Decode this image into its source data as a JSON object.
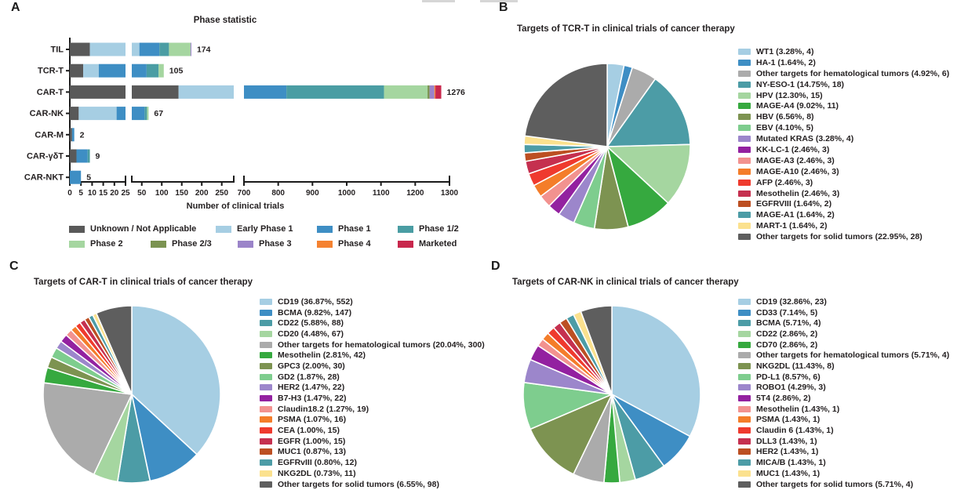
{
  "page": {
    "background": "#FFFFFF",
    "text_color": "#231F20"
  },
  "panels": {
    "a": {
      "label": "A"
    },
    "b": {
      "label": "B"
    },
    "c": {
      "label": "C"
    },
    "d": {
      "label": "D"
    }
  },
  "chart_data": [
    {
      "id": "phase-statistic",
      "type": "bar",
      "orientation": "horizontal",
      "grid": false,
      "title": "Phase statistic",
      "xlabel": "Number of clinical trials",
      "categories": [
        "TIL",
        "TCR-T",
        "CAR-T",
        "CAR-NK",
        "CAR-M",
        "CAR-γδT",
        "CAR-NKT"
      ],
      "totals": [
        174,
        105,
        1276,
        67,
        2,
        9,
        5
      ],
      "series": [
        {
          "name": "Unknown / Not Applicable",
          "color": "#595959",
          "values": [
            9,
            6,
            142,
            4,
            1,
            3,
            0
          ]
        },
        {
          "name": "Early Phase 1",
          "color": "#A6CEE3",
          "values": [
            35,
            7,
            378,
            17,
            0,
            0,
            0
          ]
        },
        {
          "name": "Phase 1",
          "color": "#3E8EC4",
          "values": [
            50,
            49,
            304,
            36,
            1,
            5,
            5
          ]
        },
        {
          "name": "Phase 1/2",
          "color": "#4A9DA3",
          "values": [
            24,
            30,
            285,
            6,
            0,
            1,
            0
          ]
        },
        {
          "name": "Phase 2",
          "color": "#A5D6A0",
          "values": [
            54,
            13,
            127,
            4,
            0,
            0,
            0
          ]
        },
        {
          "name": "Phase 2/3",
          "color": "#7B9351",
          "values": [
            0,
            0,
            6,
            0,
            0,
            0,
            0
          ]
        },
        {
          "name": "Phase 3",
          "color": "#9B84C9",
          "values": [
            2,
            0,
            14,
            0,
            0,
            0,
            0
          ]
        },
        {
          "name": "Phase 4",
          "color": "#F58231",
          "values": [
            0,
            0,
            3,
            0,
            0,
            0,
            0
          ]
        },
        {
          "name": "Marketed",
          "color": "#C8274C",
          "values": [
            0,
            0,
            17,
            0,
            0,
            0,
            0
          ]
        }
      ],
      "x_axis_segments": [
        {
          "range": [
            0,
            25
          ],
          "ticks": [
            0,
            5,
            10,
            15,
            20,
            25
          ]
        },
        {
          "range": [
            25,
            280
          ],
          "ticks": [
            50,
            100,
            150,
            200,
            250
          ]
        },
        {
          "range": [
            700,
            1300
          ],
          "ticks": [
            700,
            800,
            900,
            1000,
            1100,
            1200,
            1300
          ]
        }
      ]
    },
    {
      "id": "tcrt-targets",
      "type": "pie",
      "title": "Targets of TCR-T in clinical trials of cancer therapy",
      "slices": [
        {
          "label": "WT1",
          "pct": 3.28,
          "count": 4,
          "color": "#A6CEE3",
          "legend": "WT1 (3.28%, 4)"
        },
        {
          "label": "HA-1",
          "pct": 1.64,
          "count": 2,
          "color": "#3E8EC4",
          "legend": "HA-1 (1.64%, 2)"
        },
        {
          "label": "Other targets for hematological tumors",
          "pct": 4.92,
          "count": 6,
          "color": "#ABABAB",
          "legend": "Other targets for hematological tumors (4.92%, 6)"
        },
        {
          "label": "NY-ESO-1",
          "pct": 14.75,
          "count": 18,
          "color": "#4C9CA6",
          "legend": "NY-ESO-1 (14.75%, 18)"
        },
        {
          "label": "HPV",
          "pct": 12.3,
          "count": 15,
          "color": "#A5D6A0",
          "legend": "HPV (12.30%, 15)"
        },
        {
          "label": "MAGE-A4",
          "pct": 9.02,
          "count": 11,
          "color": "#36A93F",
          "legend": "MAGE-A4 (9.02%, 11)"
        },
        {
          "label": "HBV",
          "pct": 6.56,
          "count": 8,
          "color": "#7D9351",
          "legend": "HBV (6.56%, 8)"
        },
        {
          "label": "EBV",
          "pct": 4.1,
          "count": 5,
          "color": "#7ECD8E",
          "legend": "EBV (4.10%, 5)"
        },
        {
          "label": "Mutated KRAS",
          "pct": 3.28,
          "count": 4,
          "color": "#9C86CB",
          "legend": "Mutated KRAS (3.28%, 4)"
        },
        {
          "label": "KK-LC-1",
          "pct": 2.46,
          "count": 3,
          "color": "#9321A0",
          "legend": "KK-LC-1 (2.46%, 3)"
        },
        {
          "label": "MAGE-A3",
          "pct": 2.46,
          "count": 3,
          "color": "#F2928F",
          "legend": "MAGE-A3 (2.46%, 3)"
        },
        {
          "label": "MAGE-A10",
          "pct": 2.46,
          "count": 3,
          "color": "#F47D2A",
          "legend": "MAGE-A10 (2.46%, 3)"
        },
        {
          "label": "AFP",
          "pct": 2.46,
          "count": 3,
          "color": "#EF3A2E",
          "legend": "AFP (2.46%, 3)"
        },
        {
          "label": "Mesothelin",
          "pct": 2.46,
          "count": 3,
          "color": "#C5304F",
          "legend": "Mesothelin (2.46%, 3)"
        },
        {
          "label": "EGFRVIII",
          "pct": 1.64,
          "count": 2,
          "color": "#BC4F22",
          "legend": "EGFRVIII (1.64%, 2)"
        },
        {
          "label": "MAGE-A1",
          "pct": 1.64,
          "count": 2,
          "color": "#4C9CA6",
          "legend": "MAGE-A1 (1.64%, 2)"
        },
        {
          "label": "MART-1",
          "pct": 1.64,
          "count": 2,
          "color": "#FBE18E",
          "legend": "MART-1 (1.64%, 2)"
        },
        {
          "label": "Other targets for solid tumors",
          "pct": 22.95,
          "count": 28,
          "color": "#5E5E5E",
          "legend": "Other targets for solid tumors (22.95%, 28)"
        }
      ]
    },
    {
      "id": "cart-targets",
      "type": "pie",
      "title": "Targets of CAR-T in clinical trials of cancer therapy",
      "slices": [
        {
          "label": "CD19",
          "pct": 36.87,
          "count": 552,
          "color": "#A6CEE3",
          "legend": "CD19 (36.87%, 552)"
        },
        {
          "label": "BCMA",
          "pct": 9.82,
          "count": 147,
          "color": "#3E8EC4",
          "legend": "BCMA (9.82%, 147)"
        },
        {
          "label": "CD22",
          "pct": 5.88,
          "count": 88,
          "color": "#4C9CA6",
          "legend": "CD22 (5.88%, 88)"
        },
        {
          "label": "CD20",
          "pct": 4.48,
          "count": 67,
          "color": "#A5D6A0",
          "legend": "CD20 (4.48%, 67)"
        },
        {
          "label": "Other targets for hematological tumors",
          "pct": 20.04,
          "count": 300,
          "color": "#ABABAB",
          "legend": "Other targets for hematological tumors (20.04%, 300)"
        },
        {
          "label": "Mesothelin",
          "pct": 2.81,
          "count": 42,
          "color": "#36A93F",
          "legend": "Mesothelin (2.81%, 42)"
        },
        {
          "label": "GPC3",
          "pct": 2.0,
          "count": 30,
          "color": "#7D9351",
          "legend": "GPC3 (2.00%, 30)"
        },
        {
          "label": "GD2",
          "pct": 1.87,
          "count": 28,
          "color": "#7ECD8E",
          "legend": "GD2 (1.87%, 28)"
        },
        {
          "label": "HER2",
          "pct": 1.47,
          "count": 22,
          "color": "#9C86CB",
          "legend": "HER2 (1.47%, 22)"
        },
        {
          "label": "B7-H3",
          "pct": 1.47,
          "count": 22,
          "color": "#9321A0",
          "legend": "B7-H3 (1.47%, 22)"
        },
        {
          "label": "Claudin18.2",
          "pct": 1.27,
          "count": 19,
          "color": "#F2928F",
          "legend": "Claudin18.2 (1.27%, 19)"
        },
        {
          "label": "PSMA",
          "pct": 1.07,
          "count": 16,
          "color": "#F47D2A",
          "legend": "PSMA (1.07%, 16)"
        },
        {
          "label": "CEA",
          "pct": 1.0,
          "count": 15,
          "color": "#EF3A2E",
          "legend": "CEA (1.00%, 15)"
        },
        {
          "label": "EGFR",
          "pct": 1.0,
          "count": 15,
          "color": "#C5304F",
          "legend": "EGFR (1.00%, 15)"
        },
        {
          "label": "MUC1",
          "pct": 0.87,
          "count": 13,
          "color": "#BC4F22",
          "legend": "MUC1 (0.87%, 13)"
        },
        {
          "label": "EGFRvIII",
          "pct": 0.8,
          "count": 12,
          "color": "#4C9CA6",
          "legend": "EGFRvIII (0.80%, 12)"
        },
        {
          "label": "NKG2DL",
          "pct": 0.73,
          "count": 11,
          "color": "#FBE18E",
          "legend": "NKG2DL (0.73%, 11)"
        },
        {
          "label": "Other targets for solid tumors",
          "pct": 6.55,
          "count": 98,
          "color": "#5E5E5E",
          "legend": "Other targets for solid tumors (6.55%, 98)"
        }
      ]
    },
    {
      "id": "carnk-targets",
      "type": "pie",
      "title": "Targets of CAR-NK in clinical trials of cancer therapy",
      "slices": [
        {
          "label": "CD19",
          "pct": 32.86,
          "count": 23,
          "color": "#A6CEE3",
          "legend": "CD19 (32.86%, 23)"
        },
        {
          "label": "CD33",
          "pct": 7.14,
          "count": 5,
          "color": "#3E8EC4",
          "legend": "CD33 (7.14%, 5)"
        },
        {
          "label": "BCMA",
          "pct": 5.71,
          "count": 4,
          "color": "#4C9CA6",
          "legend": "BCMA (5.71%, 4)"
        },
        {
          "label": "CD22",
          "pct": 2.86,
          "count": 2,
          "color": "#A5D6A0",
          "legend": "CD22 (2.86%, 2)"
        },
        {
          "label": "CD70",
          "pct": 2.86,
          "count": 2,
          "color": "#36A93F",
          "legend": "CD70 (2.86%, 2)"
        },
        {
          "label": "Other targets for hematological tumors",
          "pct": 5.71,
          "count": 4,
          "color": "#ABABAB",
          "legend": "Other targets for hematological tumors (5.71%, 4)"
        },
        {
          "label": "NKG2DL",
          "pct": 11.43,
          "count": 8,
          "color": "#7D9351",
          "legend": "NKG2DL (11.43%, 8)"
        },
        {
          "label": "PD-L1",
          "pct": 8.57,
          "count": 6,
          "color": "#7ECD8E",
          "legend": "PD-L1 (8.57%, 6)"
        },
        {
          "label": "ROBO1",
          "pct": 4.29,
          "count": 3,
          "color": "#9C86CB",
          "legend": "ROBO1 (4.29%, 3)"
        },
        {
          "label": "5T4",
          "pct": 2.86,
          "count": 2,
          "color": "#9321A0",
          "legend": "5T4 (2.86%, 2)"
        },
        {
          "label": "Mesothelin",
          "pct": 1.43,
          "count": 1,
          "color": "#F2928F",
          "legend": "Mesothelin (1.43%, 1)"
        },
        {
          "label": "PSMA",
          "pct": 1.43,
          "count": 1,
          "color": "#F47D2A",
          "legend": "PSMA (1.43%, 1)"
        },
        {
          "label": "Claudin 6",
          "pct": 1.43,
          "count": 1,
          "color": "#EF3A2E",
          "legend": "Claudin 6 (1.43%, 1)"
        },
        {
          "label": "DLL3",
          "pct": 1.43,
          "count": 1,
          "color": "#C5304F",
          "legend": "DLL3 (1.43%, 1)"
        },
        {
          "label": "HER2",
          "pct": 1.43,
          "count": 1,
          "color": "#BC4F22",
          "legend": "HER2 (1.43%, 1)"
        },
        {
          "label": "MICA/B",
          "pct": 1.43,
          "count": 1,
          "color": "#4C9CA6",
          "legend": "MICA/B (1.43%, 1)"
        },
        {
          "label": "MUC1",
          "pct": 1.43,
          "count": 1,
          "color": "#FBE18E",
          "legend": "MUC1 (1.43%, 1)"
        },
        {
          "label": "Other targets for solid tumors",
          "pct": 5.71,
          "count": 4,
          "color": "#5E5E5E",
          "legend": "Other targets for solid tumors (5.71%, 4)"
        }
      ]
    }
  ]
}
